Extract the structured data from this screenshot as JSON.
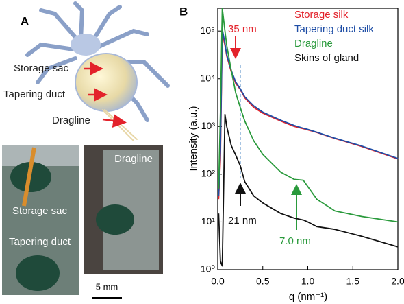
{
  "panel_a": {
    "label": "A",
    "illustration_labels": [
      "Storage sac",
      "Tapering duct",
      "Dragline"
    ],
    "photo_labels": [
      "Storage sac",
      "Tapering duct",
      "Dragline"
    ],
    "scale_bar": "5 mm"
  },
  "chart_data": {
    "type": "line",
    "panel_label": "B",
    "x_label": "q (nm⁻¹)",
    "y_label": "Intensity (a.u.)",
    "log_y": true,
    "x": [
      0.01,
      0.03,
      0.05,
      0.08,
      0.1,
      0.15,
      0.2,
      0.25,
      0.3,
      0.4,
      0.5,
      0.7,
      0.85,
      0.95,
      1.0,
      1.1,
      1.3,
      1.6,
      2.0
    ],
    "series": [
      {
        "name": "Storage silk",
        "color": "#e3222b",
        "values": [
          30,
          200,
          90000,
          50000,
          30000,
          14000,
          8000,
          6000,
          4000,
          2500,
          1900,
          1300,
          1000,
          900,
          850,
          750,
          560,
          380,
          210
        ]
      },
      {
        "name": "Tapering duct silk",
        "color": "#1f4ea6",
        "values": [
          35,
          300,
          110000,
          55000,
          32000,
          15000,
          8500,
          6200,
          4200,
          2700,
          2000,
          1350,
          1050,
          920,
          870,
          760,
          570,
          390,
          215
        ]
      },
      {
        "name": "Dragline",
        "color": "#2a9a3c",
        "values": [
          50,
          2000,
          300000,
          100000,
          50000,
          15000,
          5000,
          2500,
          1300,
          500,
          260,
          110,
          78,
          75,
          55,
          30,
          17,
          13,
          10
        ]
      },
      {
        "name": "Skins of gland",
        "color": "#111111",
        "values": [
          15,
          1.5,
          1.2,
          1800,
          1000,
          400,
          250,
          150,
          70,
          35,
          25,
          15,
          12,
          11,
          10,
          8,
          7,
          5,
          3
        ]
      }
    ],
    "annotations": [
      "35 nm",
      "21 nm",
      "7.0 nm"
    ],
    "xlim": [
      0,
      2
    ],
    "ylim": [
      1,
      300000
    ],
    "xticks": [
      {
        "value": 0,
        "label": "0.0"
      },
      0.5,
      {
        "value": 1,
        "label": "1.0"
      },
      1.5,
      {
        "value": 2,
        "label": "2.0"
      }
    ],
    "yticks": [
      {
        "value": 1,
        "label": "10⁰"
      },
      {
        "value": 10,
        "label": "10¹"
      },
      {
        "value": 100,
        "label": "10²"
      },
      {
        "value": 1000,
        "label": "10³"
      },
      {
        "value": 10000,
        "label": "10⁴"
      },
      {
        "value": 100000,
        "label": "10⁵"
      }
    ]
  }
}
